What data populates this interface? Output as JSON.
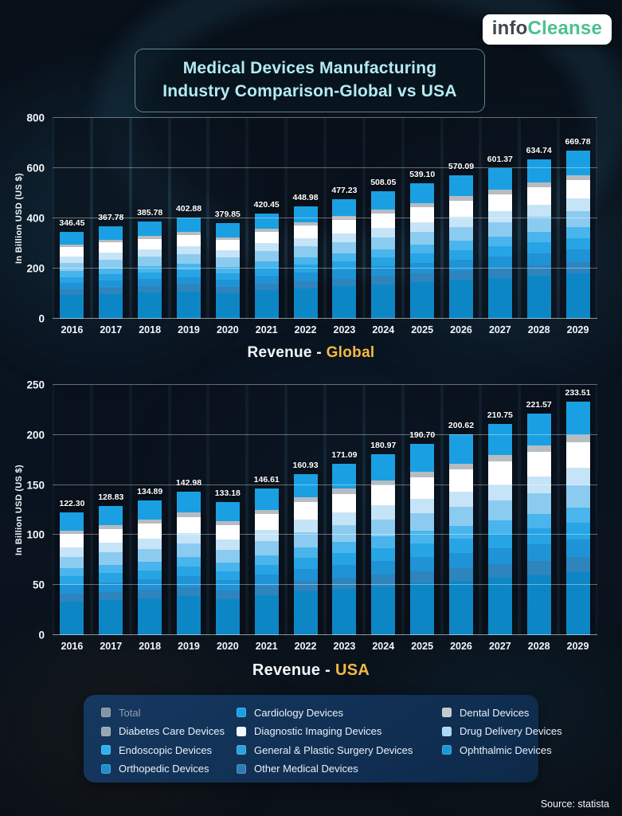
{
  "logo": {
    "part1": "info",
    "part2": "Cleanse"
  },
  "title": {
    "line1": "Medical Devices Manufacturing",
    "line2": "Industry Comparison-Global vs USA"
  },
  "source": "Source: statista",
  "colors": {
    "accent_highlight": "#f4b942",
    "title_text": "#b4ebf3",
    "logo_green": "#4cc08f",
    "logo_dark": "#41474c",
    "legend_panel": "#133a66"
  },
  "bar_segments": [
    {
      "name": "other-medical",
      "color": "#0d86c6",
      "fraction": 0.27
    },
    {
      "name": "orthopedic",
      "color": "#2e84bd",
      "fraction": 0.065
    },
    {
      "name": "ophthalmic",
      "color": "#1f93d6",
      "fraction": 0.075
    },
    {
      "name": "general-plastic-surgery",
      "color": "#27a4e4",
      "fraction": 0.07
    },
    {
      "name": "endoscopic",
      "color": "#49b5ec",
      "fraction": 0.065
    },
    {
      "name": "drug-delivery",
      "color": "#8ccbf0",
      "fraction": 0.095
    },
    {
      "name": "diabetes-care",
      "color": "#c6e4f7",
      "fraction": 0.075
    },
    {
      "name": "diagnostic-imaging",
      "color": "#ffffff",
      "fraction": 0.11
    },
    {
      "name": "dental",
      "color": "#b6bcc1",
      "fraction": 0.03
    },
    {
      "name": "cardiology",
      "color": "#1aa0e2",
      "fraction": 0.145
    }
  ],
  "legend": {
    "items": [
      {
        "label": "Total",
        "color": "#8494a3",
        "dim": true
      },
      {
        "label": "Cardiology Devices",
        "color": "#1ca0e3",
        "dim": false
      },
      {
        "label": "Dental Devices",
        "color": "#c3c9cd",
        "dim": false
      },
      {
        "label": "Diabetes Care Devices",
        "color": "#96a5b1",
        "dim": false
      },
      {
        "label": "Diagnostic Imaging Devices",
        "color": "#f2f9fd",
        "dim": false
      },
      {
        "label": "Drug Delivery Devices",
        "color": "#a9daf5",
        "dim": false
      },
      {
        "label": "Endoscopic Devices",
        "color": "#2eb1ea",
        "dim": false
      },
      {
        "label": "General & Plastic Surgery Devices",
        "color": "#2aa3de",
        "dim": false
      },
      {
        "label": "Ophthalmic  Devices",
        "color": "#1a97d8",
        "dim": false
      },
      {
        "label": "Orthopedic Devices",
        "color": "#1e8fd0",
        "dim": false
      },
      {
        "label": "Other Medical Devices",
        "color": "#2d7db3",
        "dim": false
      }
    ]
  },
  "chart_data": [
    {
      "type": "bar",
      "stacked": true,
      "title": "Revenue - Global",
      "caption_prefix": "Revenue -",
      "caption_highlight": "Global",
      "xlabel": "",
      "ylabel": "In Billion USD (US $)",
      "ylim": [
        0,
        800
      ],
      "yticks": [
        0,
        200,
        400,
        600,
        800
      ],
      "grid": true,
      "legend_position": "bottom-shared",
      "categories": [
        "2016",
        "2017",
        "2018",
        "2019",
        "2020",
        "2021",
        "2022",
        "2023",
        "2024",
        "2025",
        "2026",
        "2027",
        "2028",
        "2029"
      ],
      "values": [
        346.45,
        367.78,
        385.78,
        402.88,
        379.85,
        420.45,
        448.98,
        477.23,
        508.05,
        539.1,
        570.09,
        601.37,
        634.74,
        669.78
      ],
      "value_labels": [
        "346.45",
        "367.78",
        "385.78",
        "402.88",
        "379.85",
        "420.45",
        "448.98",
        "477.23",
        "508.05",
        "539.10",
        "570.09",
        "601.37",
        "634.74",
        "669.78"
      ]
    },
    {
      "type": "bar",
      "stacked": true,
      "title": "Revenue - USA",
      "caption_prefix": "Revenue -",
      "caption_highlight": "USA",
      "xlabel": "",
      "ylabel": "In Billion USD (US $)",
      "ylim": [
        0,
        250
      ],
      "yticks": [
        0,
        50,
        100,
        150,
        200,
        250
      ],
      "grid": true,
      "legend_position": "bottom-shared",
      "categories": [
        "2016",
        "2017",
        "2018",
        "2019",
        "2020",
        "2021",
        "2022",
        "2023",
        "2024",
        "2025",
        "2026",
        "2027",
        "2028",
        "2029"
      ],
      "values": [
        122.3,
        128.83,
        134.89,
        142.98,
        133.18,
        146.61,
        160.93,
        171.09,
        180.97,
        190.7,
        200.62,
        210.75,
        221.57,
        233.51
      ],
      "value_labels": [
        "122.30",
        "128.83",
        "134.89",
        "142.98",
        "133.18",
        "146.61",
        "160.93",
        "171.09",
        "180.97",
        "190.70",
        "200.62",
        "210.75",
        "221.57",
        "233.51"
      ]
    }
  ]
}
